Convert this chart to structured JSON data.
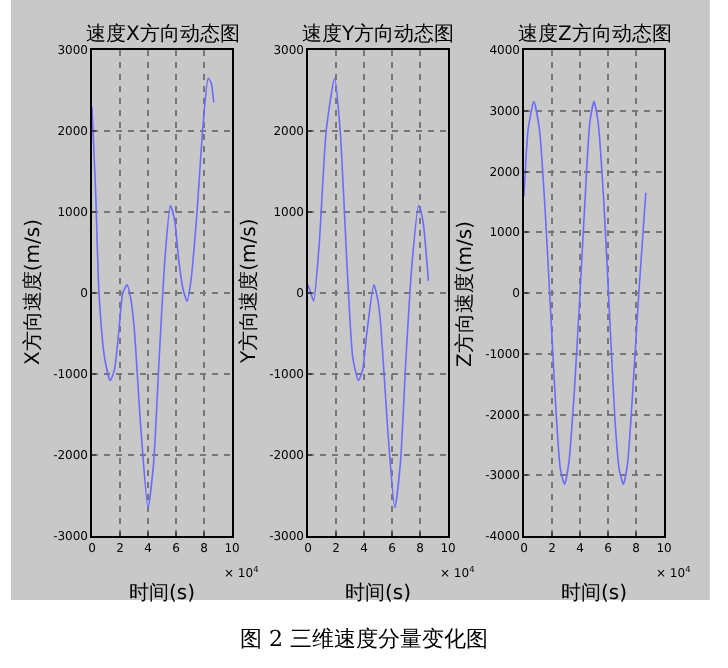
{
  "chart_data": [
    {
      "type": "line",
      "title": "速度X方向动态图",
      "xlabel": "时间(s)",
      "ylabel": "X方向速度(m/s)",
      "annotations": [
        "× 10$^{4}$"
      ],
      "series": [
        {
          "color": "#6b6bff",
          "x": [
            0,
            0.25,
            0.5,
            0.9,
            1.3,
            1.6,
            1.9,
            2.2,
            2.5,
            2.75,
            3.0,
            3.5,
            4.0,
            4.4,
            4.8,
            5.2,
            5.6,
            5.9,
            6.2,
            6.5,
            6.8,
            7.1,
            7.5,
            7.9,
            8.3,
            8.5,
            8.7
          ],
          "values": [
            2300,
            1300,
            0,
            -800,
            -1080,
            -950,
            -500,
            0,
            100,
            -50,
            -400,
            -1700,
            -2650,
            -2100,
            -800,
            400,
            1080,
            900,
            400,
            50,
            -100,
            200,
            1000,
            2000,
            2650,
            2600,
            2350
          ]
        }
      ],
      "xlim": [
        0,
        10
      ],
      "xticks": [
        0,
        2,
        4,
        6,
        8,
        10
      ],
      "ylim": [
        -3000,
        3000
      ],
      "yticks": [
        -3000,
        -2000,
        -1000,
        0,
        1000,
        2000,
        3000
      ],
      "grid": true
    },
    {
      "type": "line",
      "title": "速度Y方向动态图",
      "xlabel": "时间(s)",
      "ylabel": "Y方向速度(m/s)",
      "annotations": [
        "× 10$^{4}$",
        "图 2 三维速度分量变化图"
      ],
      "series": [
        {
          "color": "#6b6bff",
          "x": [
            0,
            0.2,
            0.4,
            0.8,
            1.3,
            1.9,
            2.3,
            2.8,
            3.2,
            3.6,
            3.9,
            4.2,
            4.7,
            5.0,
            5.2,
            5.7,
            6.2,
            6.6,
            7.0,
            7.4,
            7.9,
            8.2,
            8.6
          ],
          "values": [
            100,
            0,
            -100,
            600,
            2000,
            2650,
            2000,
            300,
            -800,
            -1080,
            -950,
            -500,
            100,
            -100,
            -400,
            -1700,
            -2650,
            -2100,
            -800,
            300,
            1080,
            900,
            150
          ]
        }
      ],
      "xlim": [
        0,
        10
      ],
      "xticks": [
        0,
        2,
        4,
        6,
        8,
        10
      ],
      "ylim": [
        -3000,
        3000
      ],
      "yticks": [
        -3000,
        -2000,
        -1000,
        0,
        1000,
        2000,
        3000
      ],
      "grid": true
    },
    {
      "type": "line",
      "title": "速度Z方向动态图",
      "xlabel": "时间(s)",
      "ylabel": "Z方向速度(m/s)",
      "annotations": [
        "× 10$^{4}$"
      ],
      "series": [
        {
          "color": "#6b6bff",
          "x": [
            0,
            0.3,
            0.7,
            1.1,
            1.5,
            1.9,
            2.3,
            2.6,
            2.9,
            3.2,
            3.6,
            4.0,
            4.4,
            4.7,
            5.0,
            5.3,
            5.7,
            6.1,
            6.5,
            6.8,
            7.1,
            7.4,
            7.8,
            8.2,
            8.7
          ],
          "values": [
            1600,
            2700,
            3150,
            2700,
            1400,
            -300,
            -2000,
            -2900,
            -3150,
            -2800,
            -1600,
            0,
            1700,
            2800,
            3150,
            2800,
            1500,
            -300,
            -2100,
            -2900,
            -3150,
            -2800,
            -1500,
            0,
            1650
          ]
        }
      ],
      "xlim": [
        0,
        10
      ],
      "xticks": [
        0,
        2,
        4,
        6,
        8,
        10
      ],
      "ylim": [
        -4000,
        4000
      ],
      "yticks": [
        -4000,
        -3000,
        -2000,
        -1000,
        0,
        1000,
        2000,
        3000,
        4000
      ],
      "grid": true
    }
  ]
}
